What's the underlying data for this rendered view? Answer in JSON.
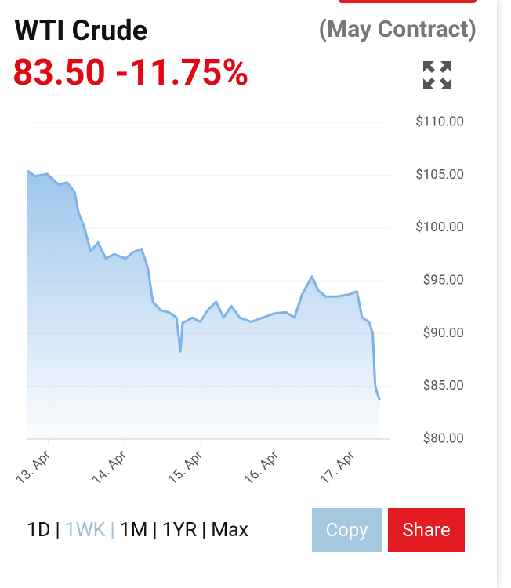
{
  "header": {
    "title": "WTI Crude",
    "price": "83.50",
    "change": "-11.75%",
    "contract": "(May Contract)"
  },
  "chart_data": {
    "type": "area",
    "color": "#7db3e6",
    "x": [
      12.72,
      12.82,
      12.98,
      13.13,
      13.24,
      13.34,
      13.39,
      13.47,
      13.55,
      13.65,
      13.75,
      13.86,
      14.01,
      14.11,
      14.22,
      14.3,
      14.37,
      14.47,
      14.58,
      14.68,
      14.73,
      14.76,
      14.89,
      14.99,
      15.09,
      15.2,
      15.3,
      15.4,
      15.51,
      15.66,
      15.81,
      15.97,
      16.12,
      16.23,
      16.33,
      16.46,
      16.54,
      16.64,
      16.79,
      16.95,
      17.05,
      17.12,
      17.21,
      17.26,
      17.29,
      17.31,
      17.35
    ],
    "values": [
      105.4,
      104.9,
      105.1,
      104.1,
      104.3,
      103.4,
      101.5,
      100.0,
      97.8,
      98.6,
      97.1,
      97.5,
      97.1,
      97.7,
      98.0,
      96.3,
      93.0,
      92.2,
      92.0,
      91.5,
      88.3,
      91.0,
      91.5,
      91.1,
      92.2,
      93.0,
      91.5,
      92.6,
      91.5,
      91.1,
      91.5,
      91.9,
      92.0,
      91.5,
      93.7,
      95.4,
      94.1,
      93.5,
      93.5,
      93.7,
      94.0,
      91.5,
      91.1,
      90.0,
      85.2,
      84.5,
      83.7
    ],
    "xlim": [
      12.72,
      17.48
    ],
    "xticks": [
      {
        "value": 13,
        "label": "13. Apr"
      },
      {
        "value": 14,
        "label": "14. Apr"
      },
      {
        "value": 15,
        "label": "15. Apr"
      },
      {
        "value": 16,
        "label": "16. Apr"
      },
      {
        "value": 17,
        "label": "17. Apr"
      }
    ],
    "ylim": [
      80,
      110
    ],
    "yticks": [
      {
        "value": 80,
        "label": "$80.00"
      },
      {
        "value": 85,
        "label": "$85.00"
      },
      {
        "value": 90,
        "label": "$90.00"
      },
      {
        "value": 95,
        "label": "$95.00"
      },
      {
        "value": 100,
        "label": "$100.00"
      },
      {
        "value": 105,
        "label": "$105.00"
      },
      {
        "value": 110,
        "label": "$110.00"
      }
    ],
    "grid": true
  },
  "ranges": [
    "1D",
    "1WK",
    "1M",
    "1YR",
    "Max"
  ],
  "separator": "|",
  "actions": [
    "Copy",
    "Share"
  ]
}
